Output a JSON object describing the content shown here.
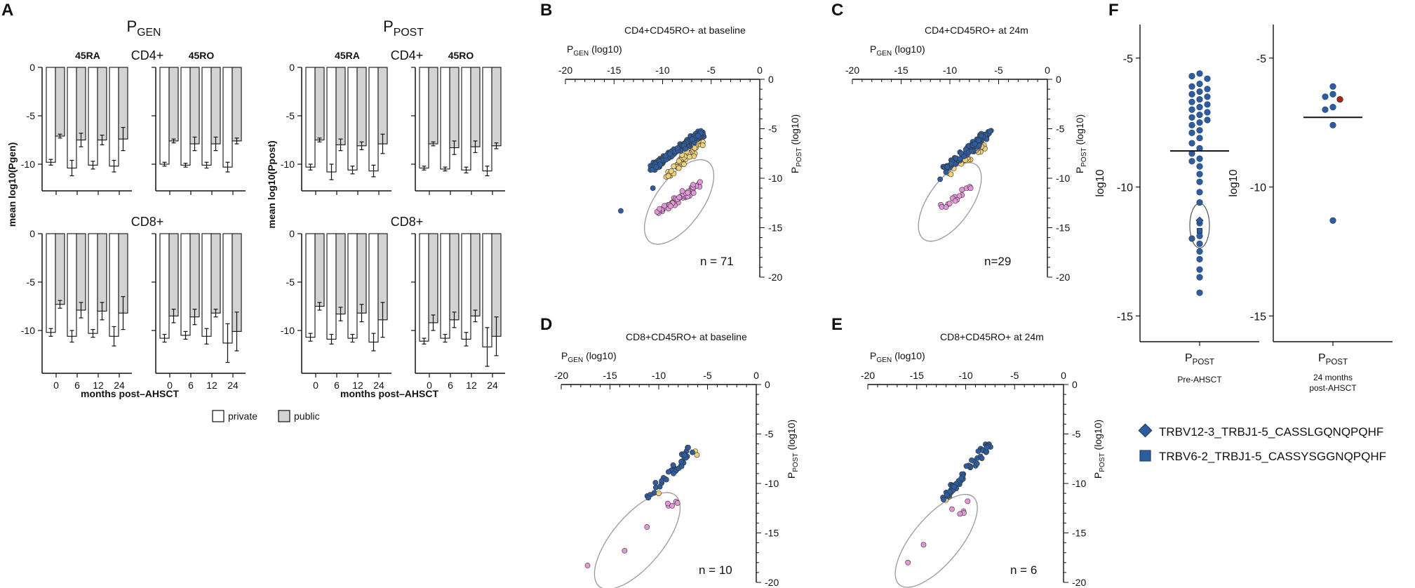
{
  "colors": {
    "public_bar": "#d3d3d3",
    "private_bar": "#ffffff",
    "blue_dot": "#2f5c9e",
    "yellow_dot": "#f1d179",
    "pink_dot": "#e596d9",
    "red_dot": "#b42318",
    "axis": "#111111",
    "ellipse": "#999999"
  },
  "panel_a": {
    "letter": "A",
    "groups": [
      {
        "title_main": "P",
        "title_sub": "GEN",
        "ylabel": "mean log10(Pgen)"
      },
      {
        "title_main": "P",
        "title_sub": "POST",
        "ylabel": "mean log10(Ppost)"
      }
    ],
    "subset_labels": [
      "45RA",
      "45RO"
    ],
    "row_labels": [
      "CD4+",
      "CD8+"
    ],
    "xlabel": "months post–AHSCT",
    "xticks": [
      "0",
      "6",
      "12",
      "24"
    ],
    "yticks": [
      "0",
      "-5",
      "-10"
    ],
    "legend": [
      {
        "label": "private",
        "color": "#ffffff"
      },
      {
        "label": "public",
        "color": "#d3d3d3"
      }
    ]
  },
  "chart_data": [
    {
      "type": "bar",
      "id": "A-Pgen-CD4-45RA",
      "categories": [
        "0",
        "6",
        "12",
        "24"
      ],
      "ylim": [
        -15,
        0
      ],
      "series": [
        {
          "name": "private",
          "values": [
            -9.8,
            -10.4,
            -10.1,
            -10.2
          ],
          "err": [
            0.3,
            0.8,
            0.4,
            0.6
          ]
        },
        {
          "name": "public",
          "values": [
            -7.1,
            -7.5,
            -7.5,
            -7.4
          ],
          "err": [
            0.2,
            0.7,
            0.5,
            1.2
          ]
        }
      ]
    },
    {
      "type": "bar",
      "id": "A-Pgen-CD4-45RO",
      "categories": [
        "0",
        "6",
        "12",
        "24"
      ],
      "ylim": [
        -15,
        0
      ],
      "series": [
        {
          "name": "private",
          "values": [
            -10.0,
            -10.1,
            -10.1,
            -10.3
          ],
          "err": [
            0.2,
            0.2,
            0.3,
            0.5
          ]
        },
        {
          "name": "public",
          "values": [
            -7.6,
            -7.9,
            -7.9,
            -7.6
          ],
          "err": [
            0.2,
            0.7,
            0.7,
            0.3
          ]
        }
      ]
    },
    {
      "type": "bar",
      "id": "A-Ppost-CD4-45RA",
      "categories": [
        "0",
        "6",
        "12",
        "24"
      ],
      "ylim": [
        -15,
        0
      ],
      "series": [
        {
          "name": "private",
          "values": [
            -10.3,
            -10.8,
            -10.6,
            -10.7
          ],
          "err": [
            0.3,
            0.8,
            0.4,
            0.6
          ]
        },
        {
          "name": "public",
          "values": [
            -7.5,
            -8.0,
            -8.1,
            -7.9
          ],
          "err": [
            0.2,
            0.6,
            0.4,
            1.0
          ]
        }
      ]
    },
    {
      "type": "bar",
      "id": "A-Ppost-CD4-45RO",
      "categories": [
        "0",
        "6",
        "12",
        "24"
      ],
      "ylim": [
        -15,
        0
      ],
      "series": [
        {
          "name": "private",
          "values": [
            -10.4,
            -10.5,
            -10.6,
            -10.7
          ],
          "err": [
            0.2,
            0.2,
            0.3,
            0.5
          ]
        },
        {
          "name": "public",
          "values": [
            -7.9,
            -8.3,
            -8.2,
            -8.1
          ],
          "err": [
            0.2,
            0.7,
            0.6,
            0.3
          ]
        }
      ]
    },
    {
      "type": "bar",
      "id": "A-Pgen-CD8-45RA",
      "categories": [
        "0",
        "6",
        "12",
        "24"
      ],
      "ylim": [
        -15,
        0
      ],
      "series": [
        {
          "name": "private",
          "values": [
            -10.2,
            -10.6,
            -10.3,
            -10.6
          ],
          "err": [
            0.4,
            0.6,
            0.4,
            1.0
          ]
        },
        {
          "name": "public",
          "values": [
            -7.3,
            -7.9,
            -8.0,
            -8.2
          ],
          "err": [
            0.4,
            0.8,
            0.9,
            1.7
          ]
        }
      ]
    },
    {
      "type": "bar",
      "id": "A-Pgen-CD8-45RO",
      "categories": [
        "0",
        "6",
        "12",
        "24"
      ],
      "ylim": [
        -15,
        0
      ],
      "series": [
        {
          "name": "private",
          "values": [
            -10.8,
            -10.5,
            -10.6,
            -11.3
          ],
          "err": [
            0.4,
            0.4,
            0.8,
            2.0
          ]
        },
        {
          "name": "public",
          "values": [
            -8.5,
            -8.6,
            -8.2,
            -10.1
          ],
          "err": [
            0.7,
            0.8,
            0.4,
            2.0
          ]
        }
      ]
    },
    {
      "type": "bar",
      "id": "A-Ppost-CD8-45RA",
      "categories": [
        "0",
        "6",
        "12",
        "24"
      ],
      "ylim": [
        -15,
        0
      ],
      "series": [
        {
          "name": "private",
          "values": [
            -10.7,
            -10.9,
            -10.8,
            -11.2
          ],
          "err": [
            0.4,
            0.5,
            0.4,
            0.9
          ]
        },
        {
          "name": "public",
          "values": [
            -7.5,
            -8.3,
            -8.2,
            -8.9
          ],
          "err": [
            0.4,
            0.7,
            0.9,
            1.8
          ]
        }
      ]
    },
    {
      "type": "bar",
      "id": "A-Ppost-CD8-45RO",
      "categories": [
        "0",
        "6",
        "12",
        "24"
      ],
      "ylim": [
        -15,
        0
      ],
      "series": [
        {
          "name": "private",
          "values": [
            -11.1,
            -10.8,
            -10.9,
            -11.7
          ],
          "err": [
            0.3,
            0.4,
            0.7,
            2.0
          ]
        },
        {
          "name": "public",
          "values": [
            -9.2,
            -8.9,
            -8.5,
            -10.6
          ],
          "err": [
            0.8,
            0.8,
            0.6,
            2.0
          ]
        }
      ]
    },
    {
      "type": "scatter",
      "id": "B",
      "letter": "B",
      "title": "CD4+CD45RO+ at baseline",
      "xlabel_main": "P",
      "xlabel_sub": "GEN",
      "xlabel_tail": " (log10)",
      "ylabel_main": "P",
      "ylabel_sub": "POST",
      "ylabel_tail": " (log10)",
      "n_label": "n = 71",
      "xlim": [
        -20,
        0
      ],
      "ylim": [
        -20,
        0
      ],
      "xticks": [
        -20,
        -15,
        -10,
        -5,
        0
      ],
      "yticks": [
        0,
        -5,
        -10,
        -15,
        -20
      ],
      "band": {
        "blue": {
          "x": [
            -11.2,
            -5.8
          ],
          "y": [
            -9.0,
            -5.3
          ],
          "n": 170
        },
        "yellow": {
          "x": [
            -9.5,
            -5.7
          ],
          "y": [
            -9.6,
            -6.2
          ],
          "n": 45
        },
        "pink": {
          "x": [
            -10.4,
            -6.2
          ],
          "y": [
            -13.5,
            -10.6
          ],
          "n": 55
        }
      },
      "extra_points": [
        {
          "x": -14.3,
          "y": -13.3,
          "c": "blue"
        },
        {
          "x": -11.0,
          "y": -11.0,
          "c": "blue"
        }
      ],
      "ellipse": {
        "cx": -8.3,
        "cy": -12.4,
        "rx": 2.4,
        "ry": 5.0,
        "rot": 36
      }
    },
    {
      "type": "scatter",
      "id": "C",
      "letter": "C",
      "title": "CD4+CD45RO+ at 24m",
      "xlabel_main": "P",
      "xlabel_sub": "GEN",
      "xlabel_tail": " (log10)",
      "ylabel_main": "P",
      "ylabel_sub": "POST",
      "ylabel_tail": " (log10)",
      "n_label": "n=29",
      "xlim": [
        -20,
        0
      ],
      "ylim": [
        -20,
        0
      ],
      "xticks": [
        -20,
        -15,
        -10,
        -5,
        0
      ],
      "yticks": [
        0,
        -5,
        -10,
        -15,
        -20
      ],
      "band": {
        "blue": {
          "x": [
            -10.4,
            -5.9
          ],
          "y": [
            -9.0,
            -5.3
          ],
          "n": 85
        },
        "yellow": {
          "x": [
            -10.2,
            -6.3
          ],
          "y": [
            -9.2,
            -6.6
          ],
          "n": 22
        },
        "pink": {
          "x": [
            -11.2,
            -7.6
          ],
          "y": [
            -13.2,
            -10.8
          ],
          "n": 16
        }
      },
      "extra_points": [
        {
          "x": -10.4,
          "y": -9.4,
          "c": "blue"
        },
        {
          "x": -11.0,
          "y": -10.1,
          "c": "blue"
        },
        {
          "x": -9.9,
          "y": -9.6,
          "c": "yellow"
        }
      ],
      "ellipse": {
        "cx": -10.0,
        "cy": -12.4,
        "rx": 2.2,
        "ry": 4.6,
        "rot": 35
      }
    },
    {
      "type": "scatter",
      "id": "D",
      "letter": "D",
      "title": "CD8+CD45RO+ at baseline",
      "xlabel_main": "P",
      "xlabel_sub": "GEN",
      "xlabel_tail": " (log10)",
      "ylabel_main": "P",
      "ylabel_sub": "POST",
      "ylabel_tail": " (log10)",
      "n_label": "n = 10",
      "xlim": [
        -20,
        0
      ],
      "ylim": [
        -20,
        0
      ],
      "xticks": [
        -20,
        -15,
        -10,
        -5,
        0
      ],
      "yticks": [
        0,
        -5,
        -10,
        -15,
        -20
      ],
      "band": {
        "blue": {
          "x": [
            -11.0,
            -6.6
          ],
          "y": [
            -11.4,
            -6.4
          ],
          "n": 40
        },
        "yellow": {
          "x": [
            -6.6,
            -6.3
          ],
          "y": [
            -7.4,
            -7.0
          ],
          "n": 2
        },
        "pink": {
          "x": [
            -9.3,
            -8.0
          ],
          "y": [
            -12.4,
            -11.8
          ],
          "n": 5
        }
      },
      "extra_points": [
        {
          "x": -10.0,
          "y": -11.0,
          "c": "yellow"
        },
        {
          "x": -11.2,
          "y": -14.4,
          "c": "pink"
        },
        {
          "x": -13.5,
          "y": -16.8,
          "c": "pink"
        },
        {
          "x": -17.3,
          "y": -18.3,
          "c": "pink"
        }
      ],
      "ellipse": {
        "cx": -12.2,
        "cy": -15.8,
        "rx": 2.6,
        "ry": 6.0,
        "rot": 40
      }
    },
    {
      "type": "scatter",
      "id": "E",
      "letter": "E",
      "title": "CD8+CD45RO+ at 24m",
      "xlabel_main": "P",
      "xlabel_sub": "GEN",
      "xlabel_tail": " (log10)",
      "ylabel_main": "P",
      "ylabel_sub": "POST",
      "ylabel_tail": " (log10)",
      "n_label": "n = 6",
      "xlim": [
        -20,
        0
      ],
      "ylim": [
        -20,
        0
      ],
      "xticks": [
        -20,
        -15,
        -10,
        -5,
        0
      ],
      "yticks": [
        0,
        -5,
        -10,
        -15,
        -20
      ],
      "band": {
        "blue": {
          "x": [
            -12.2,
            -7.6
          ],
          "y": [
            -11.6,
            -6.0
          ],
          "n": 50
        },
        "yellow": {
          "x": [
            -12.1,
            -11.6
          ],
          "y": [
            -11.5,
            -11.1
          ],
          "n": 2
        },
        "pink": {
          "x": [
            -10.6,
            -10.3
          ],
          "y": [
            -13.1,
            -12.9
          ],
          "n": 3
        }
      },
      "extra_points": [
        {
          "x": -9.8,
          "y": -11.8,
          "c": "pink"
        },
        {
          "x": -11.4,
          "y": -12.6,
          "c": "pink"
        },
        {
          "x": -14.3,
          "y": -16.2,
          "c": "pink"
        },
        {
          "x": -15.9,
          "y": -18.0,
          "c": "pink"
        }
      ],
      "ellipse": {
        "cx": -13.0,
        "cy": -15.8,
        "rx": 2.4,
        "ry": 5.8,
        "rot": 40
      }
    },
    {
      "type": "scatter",
      "id": "F-pre",
      "letter": "F",
      "ylabel": "log10",
      "xlabel_main": "P",
      "xlabel_sub": "POST",
      "caption": "Pre-AHSCT",
      "ylim": [
        -16,
        -3.7
      ],
      "yticks": [
        -5,
        -10,
        -15
      ],
      "mean": -8.6,
      "points": [
        -5.6,
        -5.7,
        -5.8,
        -6.0,
        -6.1,
        -6.2,
        -6.3,
        -6.4,
        -6.5,
        -6.6,
        -6.7,
        -6.8,
        -6.9,
        -7.0,
        -7.1,
        -7.2,
        -7.3,
        -7.4,
        -7.5,
        -7.6,
        -7.8,
        -7.9,
        -8.1,
        -8.3,
        -8.5,
        -8.7,
        -8.9,
        -9.0,
        -9.2,
        -9.5,
        -9.8,
        -10.2,
        -10.6,
        -11.4,
        -11.9,
        -12.0,
        -12.2,
        -12.5,
        -12.8,
        -13.2,
        -13.5,
        -14.1
      ],
      "marked": [
        {
          "y": -11.3,
          "shape": "diamond"
        },
        {
          "y": -11.7,
          "shape": "square"
        }
      ],
      "circle": {
        "cy": -11.5,
        "ry": 0.7
      }
    },
    {
      "type": "scatter",
      "id": "F-24m",
      "ylabel": "log10",
      "xlabel_main": "P",
      "xlabel_sub": "POST",
      "caption_lines": [
        "24 months",
        "post-AHSCT"
      ],
      "ylim": [
        -16,
        -3.7
      ],
      "yticks": [
        -5,
        -10,
        -15
      ],
      "mean": -7.3,
      "points": [
        -6.1,
        -6.4,
        -6.5,
        -6.9,
        -7.0,
        -7.6,
        -11.3
      ],
      "red_points": [
        -6.6
      ]
    }
  ],
  "legend_f": [
    {
      "shape": "diamond",
      "label": "TRBV12-3_TRBJ1-5_CASSLGQNQPQHF"
    },
    {
      "shape": "square",
      "label": "TRBV6-2_TRBJ1-5_CASSYSGGNQPQHF"
    }
  ]
}
